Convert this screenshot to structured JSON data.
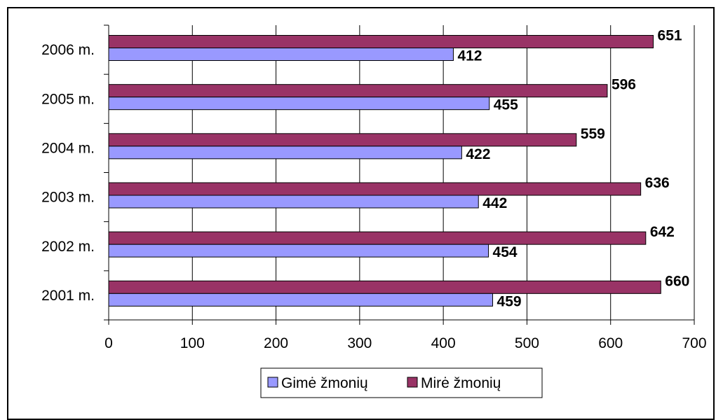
{
  "chart_data": {
    "type": "bar",
    "orientation": "horizontal",
    "categories": [
      "2001 m.",
      "2002 m.",
      "2003 m.",
      "2004 m.",
      "2005 m.",
      "2006 m."
    ],
    "series": [
      {
        "name": "Gimė žmonių",
        "values": [
          459,
          454,
          442,
          422,
          455,
          412
        ],
        "color": "#9999ff"
      },
      {
        "name": "Mirė žmonių",
        "values": [
          660,
          642,
          636,
          559,
          596,
          651
        ],
        "color": "#993366"
      }
    ],
    "xlim": [
      0,
      700
    ],
    "xticks": [
      0,
      100,
      200,
      300,
      400,
      500,
      600,
      700
    ],
    "grid": "vertical",
    "legend": "bottom",
    "data_labels": true,
    "title": "",
    "xlabel": "",
    "ylabel": ""
  }
}
